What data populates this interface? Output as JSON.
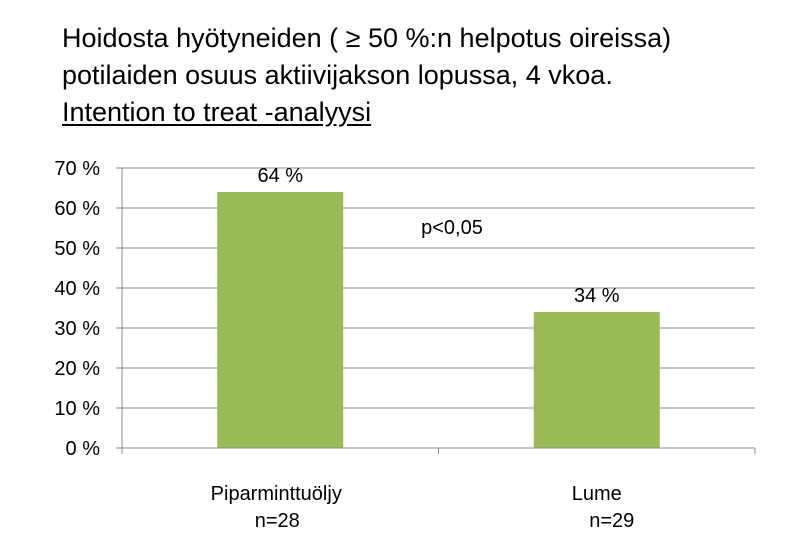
{
  "title_lines": [
    "Hoidosta hyötyneiden ( ≥ 50 %:n helpotus oireissa)",
    "potilaiden osuus  aktiivijakson lopussa, 4 vkoa.",
    "Intention to treat -analyysi"
  ],
  "colors": {
    "bar": "#9bbb59",
    "grid": "#8c8c8c",
    "axis": "#8c8c8c",
    "text": "#000000"
  },
  "chart_data": {
    "type": "bar",
    "categories": [
      "Piparminttuöljy",
      "Lume"
    ],
    "category_sublabels": [
      "n=28",
      "n=29"
    ],
    "values": [
      64,
      34
    ],
    "value_labels": [
      "64 %",
      "34 %"
    ],
    "y_ticks": [
      "0 %",
      "10 %",
      "20 %",
      "30 %",
      "40 %",
      "50 %",
      "60 %",
      "70 %"
    ],
    "ylim": [
      0,
      70
    ],
    "y_unit": "%",
    "grid": true,
    "legend": "none",
    "annotation": "p<0,05"
  }
}
